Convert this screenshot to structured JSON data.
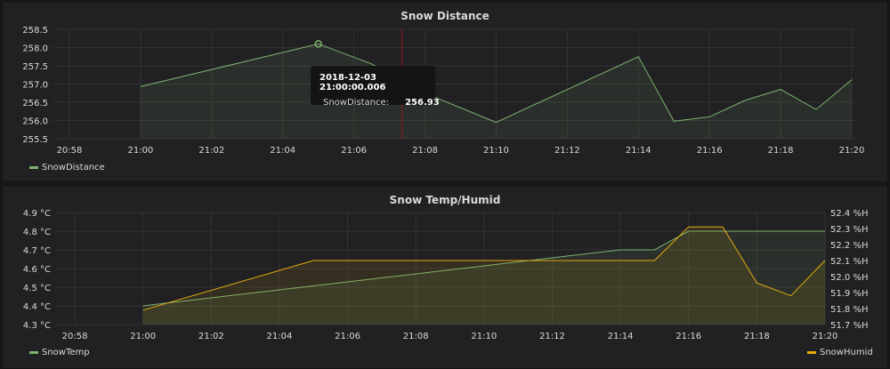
{
  "colors": {
    "green": "#7eb26d",
    "yellow": "#e5ac0e",
    "crosshair": "#8b1a1a"
  },
  "chart_data": [
    {
      "type": "line",
      "title": "Snow Distance",
      "x": [
        "21:00",
        "21:05",
        "21:06:30",
        "21:08",
        "21:10",
        "21:14",
        "21:15",
        "21:16",
        "21:17",
        "21:18",
        "21:19",
        "21:20"
      ],
      "series": [
        {
          "name": "SnowDistance",
          "color": "#7eb26d",
          "values": [
            256.93,
            258.1,
            257.55,
            256.75,
            255.95,
            257.75,
            255.98,
            256.1,
            256.55,
            256.85,
            256.3,
            257.12
          ]
        }
      ],
      "xticks": [
        "20:58",
        "21:00",
        "21:02",
        "21:04",
        "21:06",
        "21:08",
        "21:10",
        "21:12",
        "21:14",
        "21:16",
        "21:18",
        "21:20"
      ],
      "yticks": [
        "255.5",
        "256.0",
        "256.5",
        "257.0",
        "257.5",
        "258.0",
        "258.5"
      ],
      "ylim": [
        255.5,
        258.5
      ],
      "legend": "bottom-left",
      "tooltip": {
        "time": "2018-12-03 21:00:00.006",
        "label": "SnowDistance:",
        "value": "256.93"
      }
    },
    {
      "type": "line",
      "title": "Snow Temp/Humid",
      "x": [
        "21:00",
        "21:05",
        "21:15",
        "21:16",
        "21:17",
        "21:18",
        "21:19",
        "21:20"
      ],
      "series": [
        {
          "name": "SnowTemp",
          "color": "#7eb26d",
          "axis": "left",
          "x": [
            "21:00",
            "21:14",
            "21:15",
            "21:16",
            "21:17",
            "21:18",
            "21:19",
            "21:20"
          ],
          "values": [
            4.4,
            4.7,
            4.7,
            4.8,
            4.8,
            4.8,
            4.8,
            4.8
          ]
        },
        {
          "name": "SnowHumid",
          "color": "#e5ac0e",
          "axis": "right",
          "x": [
            "21:00",
            "21:05",
            "21:15",
            "21:16",
            "21:17",
            "21:18",
            "21:19",
            "21:20"
          ],
          "values": [
            51.79,
            52.1,
            52.1,
            52.31,
            52.31,
            51.96,
            51.88,
            52.1
          ]
        }
      ],
      "xticks": [
        "20:58",
        "21:00",
        "21:02",
        "21:04",
        "21:06",
        "21:08",
        "21:10",
        "21:12",
        "21:14",
        "21:16",
        "21:18",
        "21:20"
      ],
      "yticks_left": [
        "4.3 °C",
        "4.4 °C",
        "4.5 °C",
        "4.6 °C",
        "4.7 °C",
        "4.8 °C",
        "4.9 °C"
      ],
      "ylim_left": [
        4.3,
        4.9
      ],
      "yticks_right": [
        "51.7 %H",
        "51.8 %H",
        "51.9 %H",
        "52.0 %H",
        "52.1 %H",
        "52.2 %H",
        "52.3 %H",
        "52.4 %H"
      ],
      "ylim_right": [
        51.7,
        52.4
      ],
      "legend": "bottom"
    }
  ]
}
